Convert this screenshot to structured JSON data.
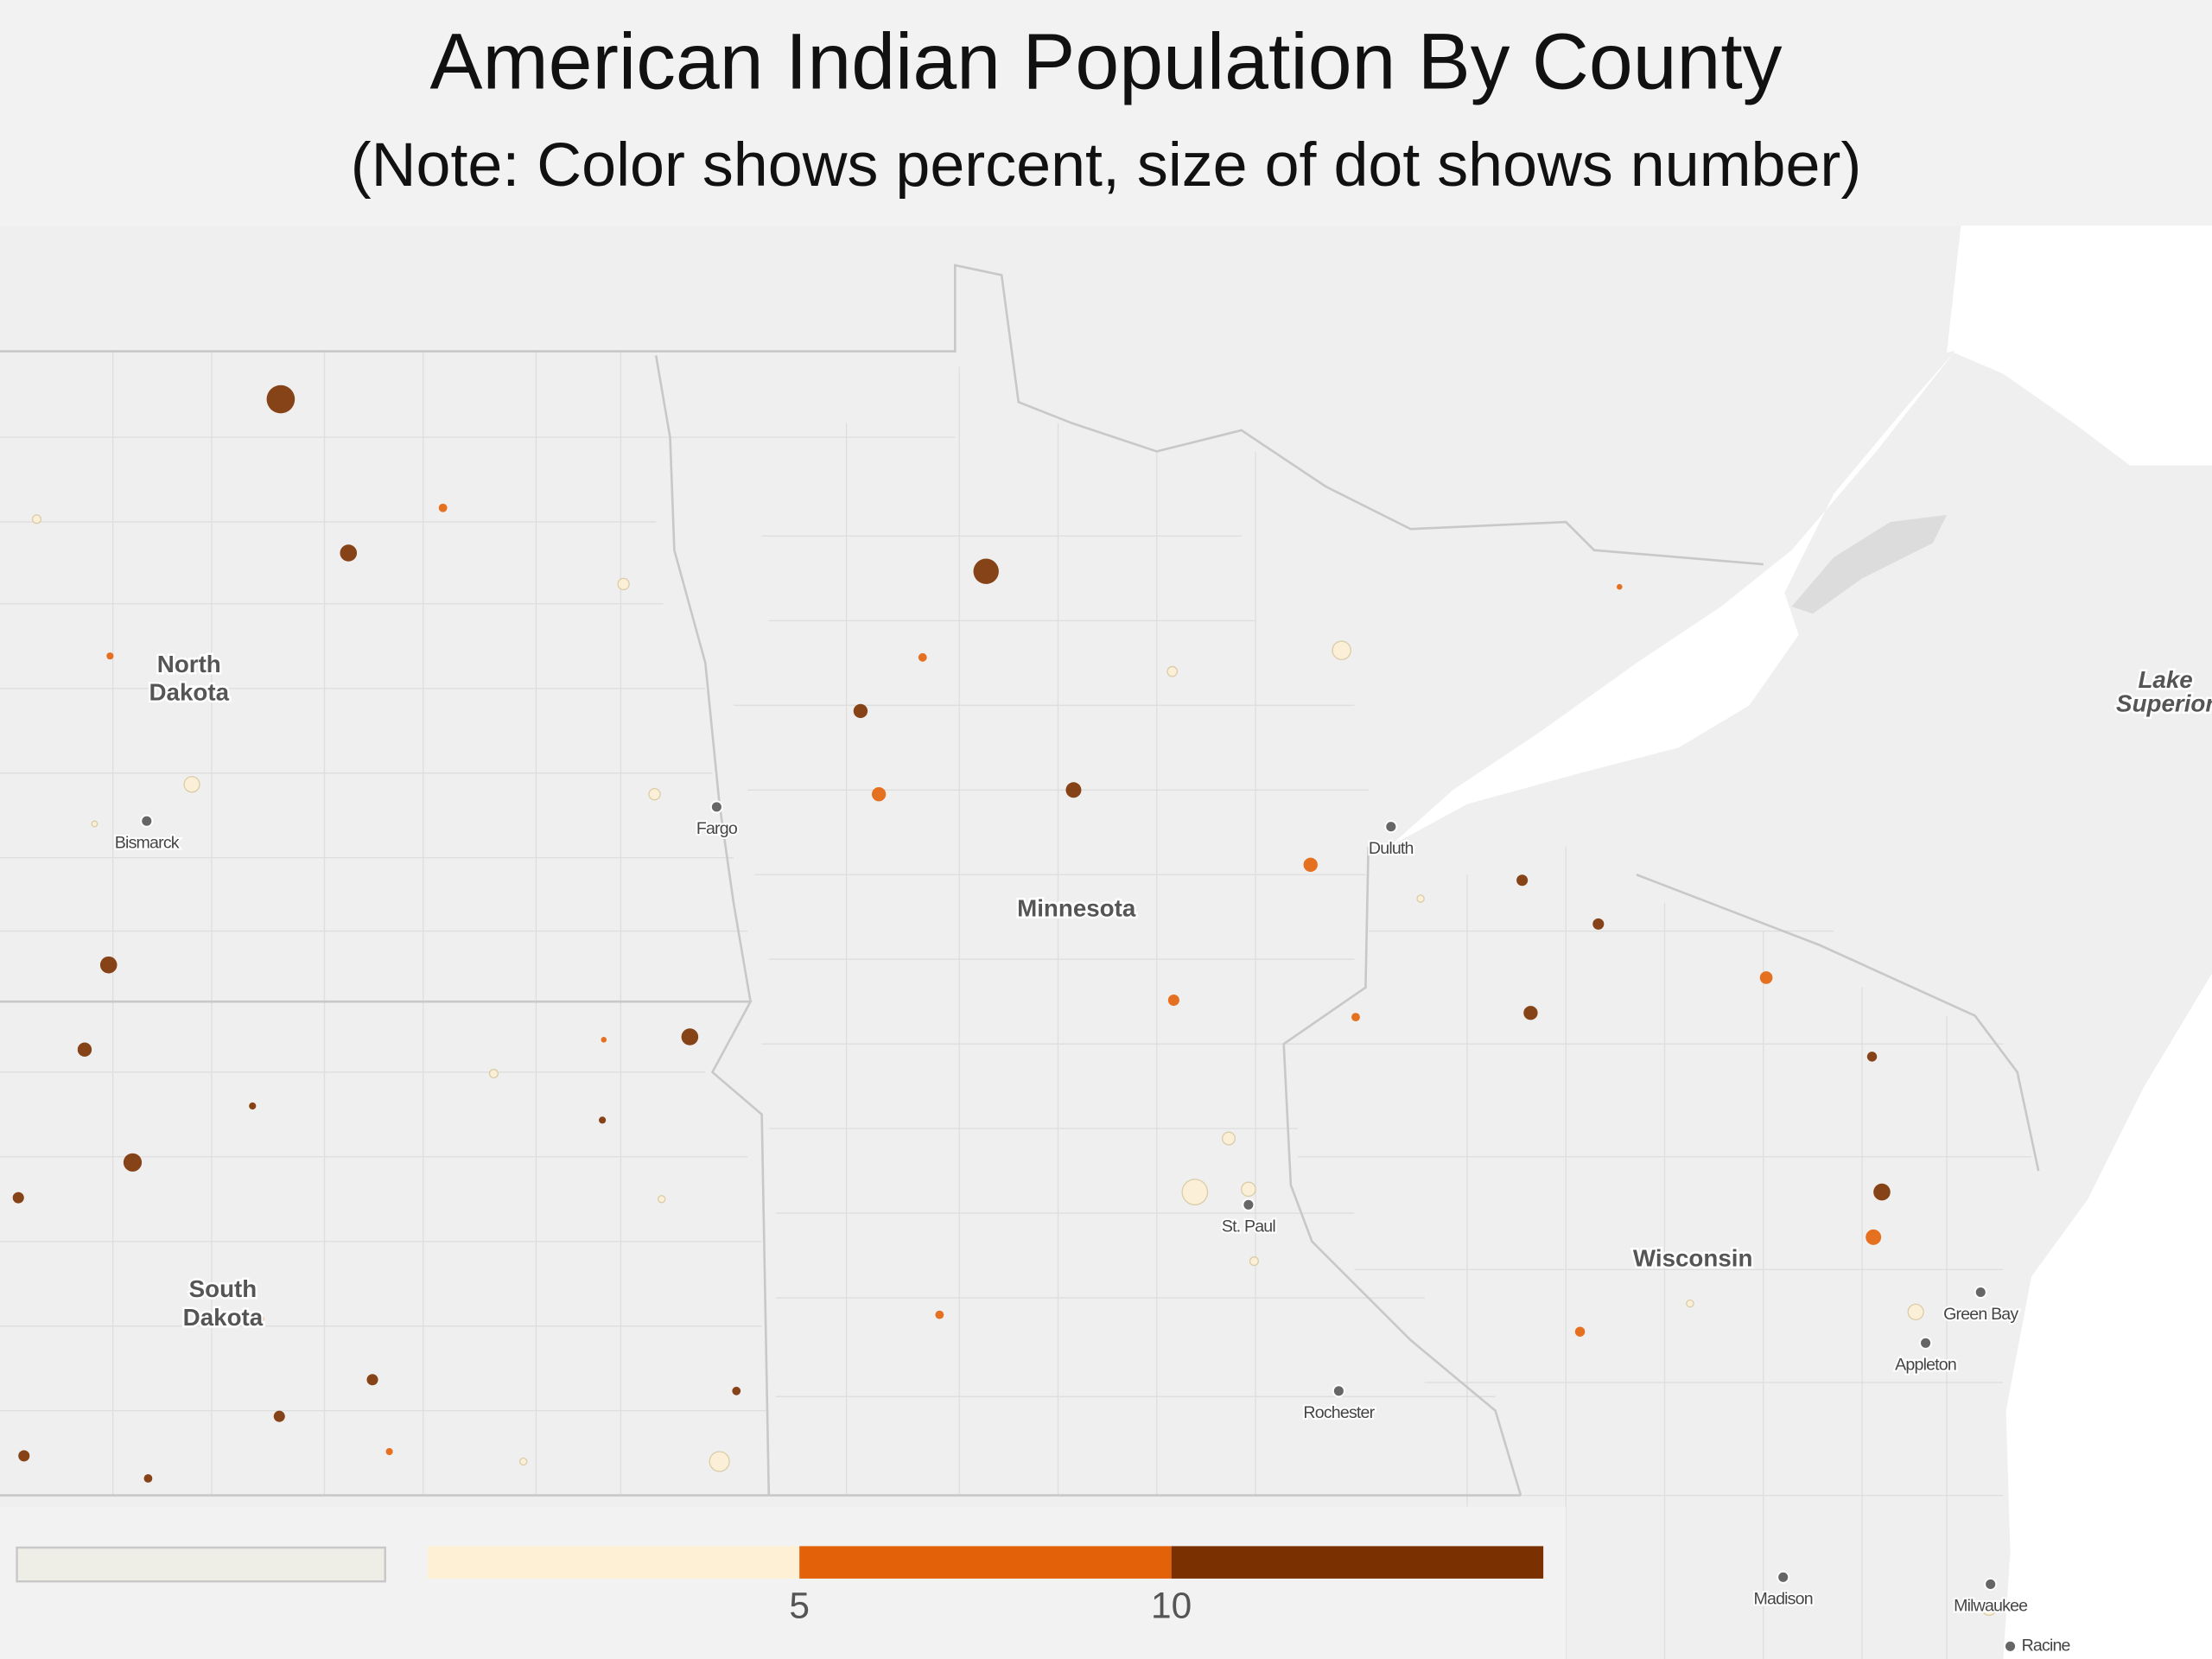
{
  "header": {
    "title": "American Indian Population By County",
    "subtitle": "(Note: Color shows percent, size of dot shows number)"
  },
  "map": {
    "regions": [
      [
        "North",
        "Dakota"
      ],
      [
        "South",
        "Dakota"
      ],
      [
        "Minnesota"
      ],
      [
        "Wisconsin"
      ],
      [
        "Lake",
        "Superior"
      ]
    ],
    "cities": [
      "Bismarck",
      "Fargo",
      "Duluth",
      "St. Paul",
      "Rochester",
      "Green Bay",
      "Appleton",
      "Madison",
      "Milwaukee",
      "Racine"
    ]
  },
  "legend": {
    "null_color": "#efeee6",
    "colors": [
      "#fdf0d5",
      "#e36209",
      "#7a3000"
    ],
    "xlim": [
      0,
      15
    ],
    "xticks": [
      5,
      10
    ]
  }
}
